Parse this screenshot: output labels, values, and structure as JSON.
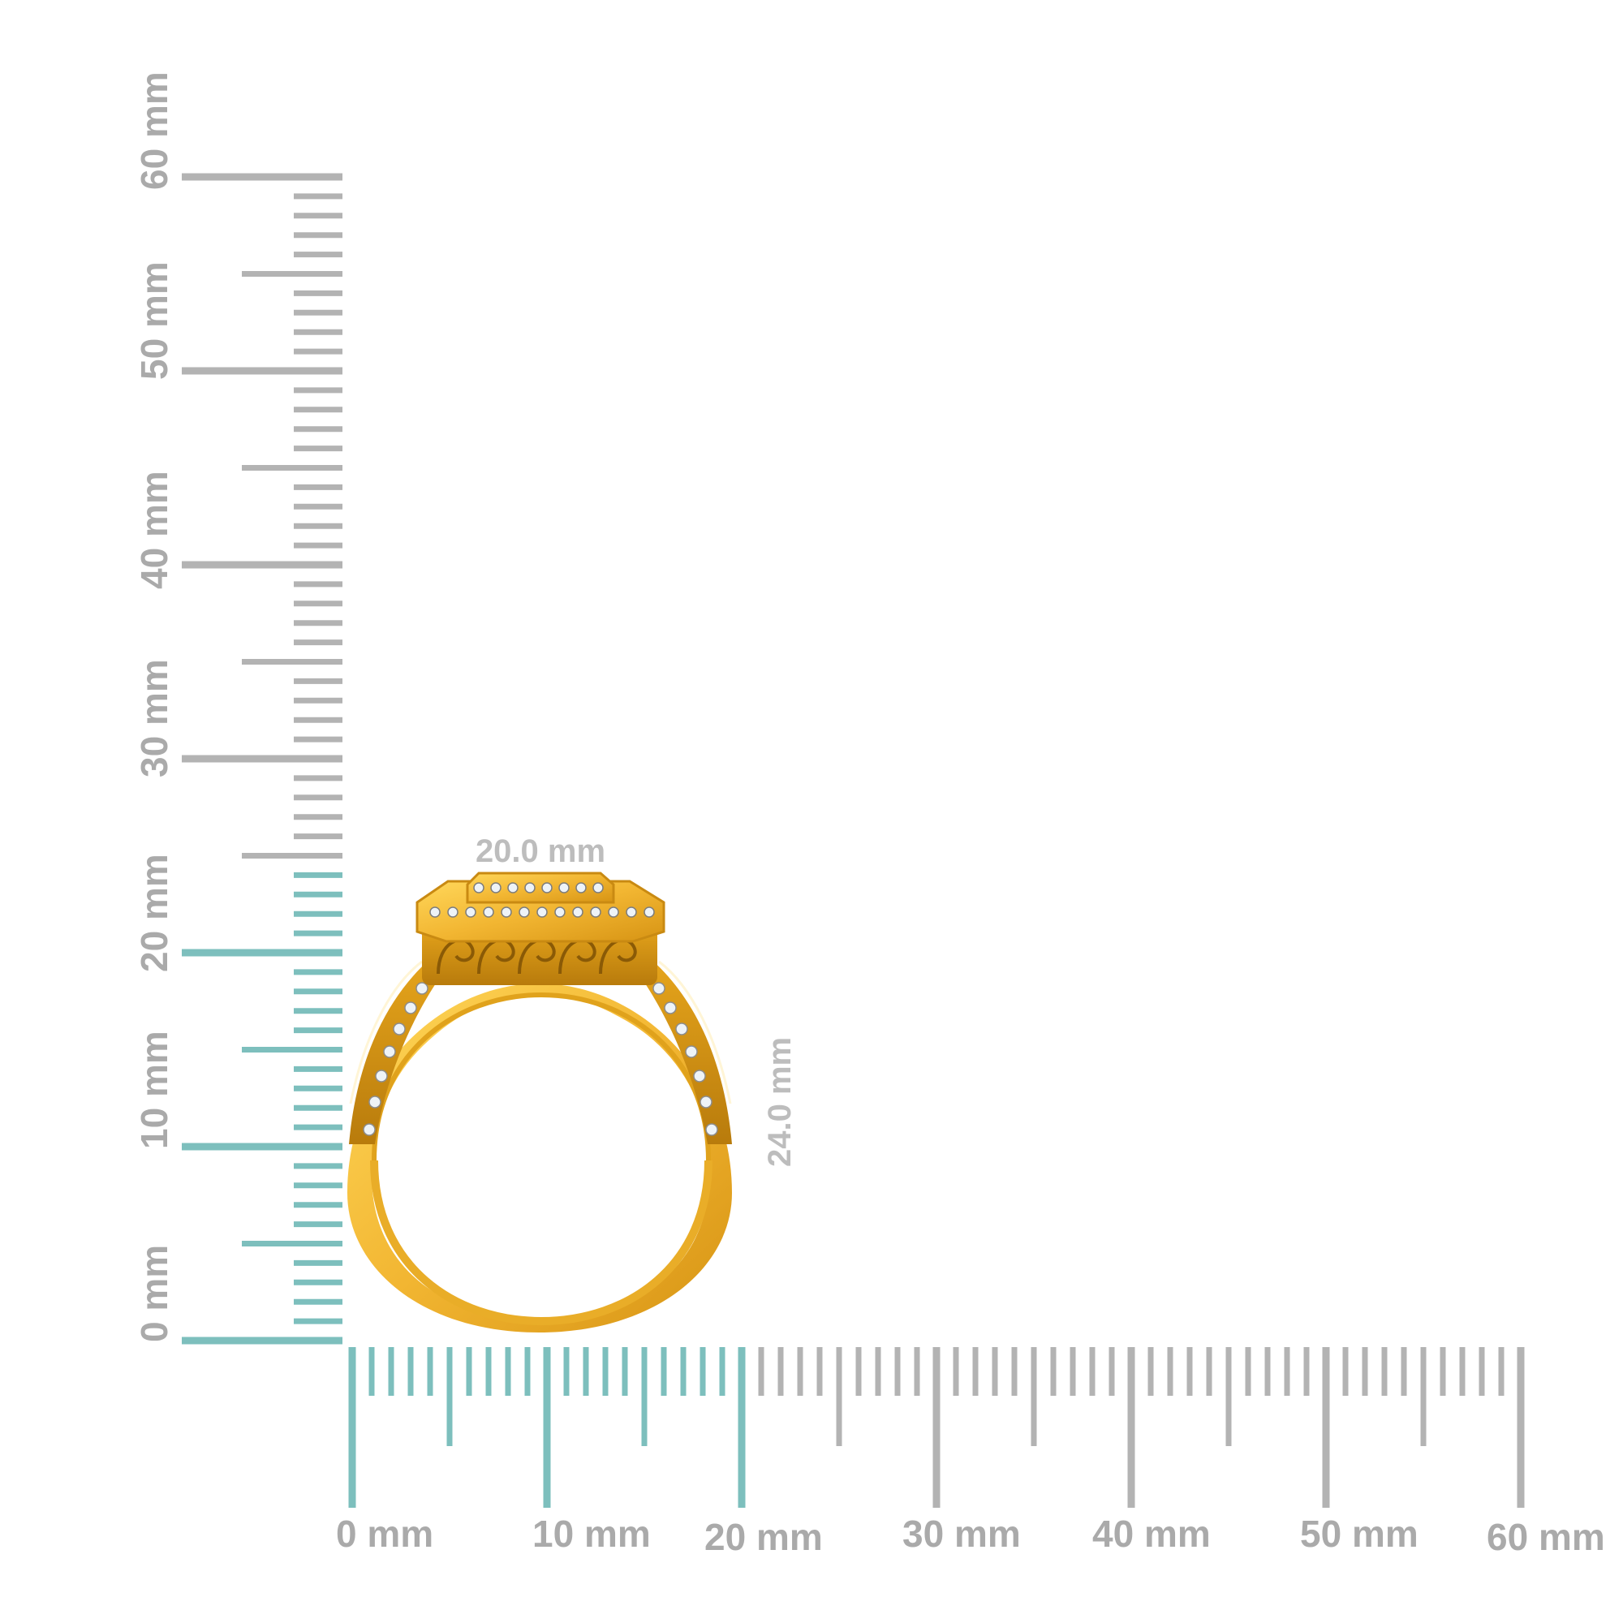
{
  "scale": {
    "unit": "mm",
    "max_mm": 60,
    "highlight_color": "#7dbfbd",
    "tick_color": "#b3b3b3",
    "label_color": "#aaaaaa",
    "vertical_highlight_mm": 24,
    "horizontal_highlight_mm": 20,
    "vertical_labels": [
      "0 mm",
      "10 mm",
      "20 mm",
      "30 mm",
      "40 mm",
      "50 mm",
      "60 mm"
    ],
    "horizontal_labels": [
      "0 mm",
      "10 mm",
      "20 mm",
      "30 mm",
      "40 mm",
      "50 mm",
      "60 mm"
    ]
  },
  "measurements": {
    "width_label": "20.0 mm",
    "height_label": "24.0 mm"
  },
  "ring": {
    "metal_color": "#f2b632",
    "metal_shadow": "#c98a12",
    "stone_color": "#eef3f7",
    "icon": "yellow-gold-halo-ring"
  }
}
